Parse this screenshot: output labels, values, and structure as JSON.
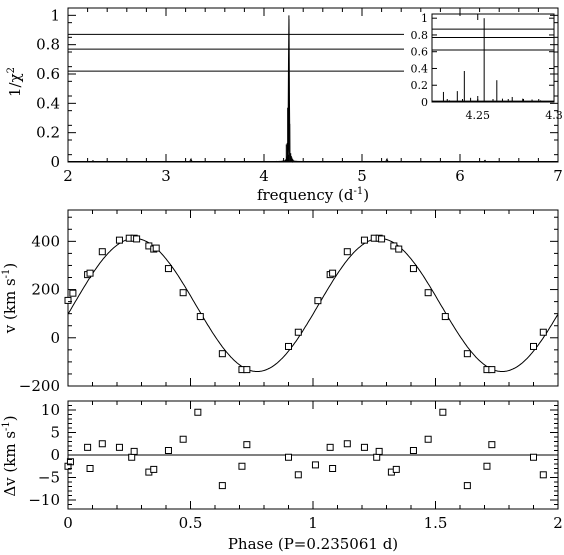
{
  "chart_data": [
    {
      "type": "line",
      "id": "periodogram",
      "xlabel": "frequency (d",
      "xlabel_sup": "-1",
      "xlabel_close": ")",
      "ylabel": "1/χ",
      "ylabel_sup": "2",
      "xlim": [
        2,
        7
      ],
      "ylim": [
        0,
        1.05
      ],
      "xticks": [
        2,
        3,
        4,
        5,
        6,
        7
      ],
      "yticks": [
        0,
        0.2,
        0.4,
        0.6,
        0.8,
        1
      ],
      "ytick_labels": [
        "0",
        "0.2",
        "0.4",
        "0.6",
        "0.8",
        "1"
      ],
      "hlines": [
        0.62,
        0.77,
        0.87
      ],
      "peak": {
        "x": 4.254,
        "y": 1.0
      },
      "side_peaks": [
        {
          "x": 3.254,
          "y": 0.018
        },
        {
          "x": 5.254,
          "y": 0.018
        },
        {
          "x": 6.254,
          "y": 0.008
        },
        {
          "x": 2.254,
          "y": 0.006
        }
      ],
      "inset": {
        "xlim": [
          4.22,
          4.3
        ],
        "ylim": [
          0,
          1.05
        ],
        "xtick_labels": [
          "4.25",
          "4.3"
        ],
        "xticks": [
          4.25,
          4.3
        ],
        "yticks": [
          0,
          0.2,
          0.4,
          0.6,
          0.8,
          1
        ],
        "ytick_labels": [
          "0",
          "0.2",
          "0.4",
          "0.6",
          "0.8",
          "1"
        ],
        "hlines": [
          0.62,
          0.77,
          0.87
        ],
        "lines": [
          {
            "x": 4.2275,
            "y": 0.12
          },
          {
            "x": 4.2314,
            "y": 0.02
          },
          {
            "x": 4.2366,
            "y": 0.13
          },
          {
            "x": 4.2412,
            "y": 0.37
          },
          {
            "x": 4.2453,
            "y": 0.05
          },
          {
            "x": 4.2542,
            "y": 1.0
          },
          {
            "x": 4.2625,
            "y": 0.26
          },
          {
            "x": 4.2662,
            "y": 0.04
          },
          {
            "x": 4.2726,
            "y": 0.06
          },
          {
            "x": 4.2795,
            "y": 0.04
          },
          {
            "x": 4.2856,
            "y": 0.03
          },
          {
            "x": 4.2912,
            "y": 0.02
          }
        ]
      }
    },
    {
      "type": "scatter",
      "id": "radial-velocity",
      "xlabel": "",
      "ylabel": "v (km s",
      "ylabel_sup": "-1",
      "ylabel_close": ")",
      "xlim": [
        0,
        2
      ],
      "ylim": [
        -200,
        530
      ],
      "yticks": [
        -200,
        0,
        200,
        400
      ],
      "ytick_labels": [
        "−200",
        "0",
        "200",
        "400"
      ],
      "model": {
        "gamma": 136,
        "amplitude": 276,
        "phase_of_max": 0.272
      },
      "x": [
        0.0,
        0.02,
        0.08,
        0.09,
        0.14,
        0.21,
        0.25,
        0.27,
        0.28,
        0.33,
        0.35,
        0.36,
        0.41,
        0.47,
        0.54,
        0.63,
        0.71,
        0.73,
        0.9,
        0.94,
        1.02,
        1.07,
        1.08,
        1.14,
        1.21,
        1.25,
        1.27,
        1.28,
        1.33,
        1.35,
        1.41,
        1.47,
        1.54,
        1.63,
        1.71,
        1.73,
        1.9,
        1.94
      ],
      "y": [
        155,
        185,
        262,
        268,
        357,
        405,
        413,
        413,
        410,
        381,
        368,
        372,
        287,
        187,
        88,
        -66,
        -132,
        -132,
        -36,
        23,
        154,
        262,
        268,
        357,
        405,
        413,
        413,
        410,
        381,
        368,
        287,
        187,
        88,
        -66,
        -132,
        -132,
        -36,
        23
      ]
    },
    {
      "type": "scatter",
      "id": "residuals",
      "xlabel": "Phase (P=0.235061 d)",
      "ylabel": "Δv (km s",
      "ylabel_sup": "-1",
      "ylabel_close": ")",
      "xlim": [
        0,
        2
      ],
      "ylim": [
        -12,
        12
      ],
      "xticks": [
        0,
        0.5,
        1,
        1.5,
        2
      ],
      "xtick_labels": [
        "0",
        "0.5",
        "1",
        "1.5",
        "2"
      ],
      "yticks": [
        -10,
        -5,
        0,
        5,
        10
      ],
      "ytick_labels": [
        "−10",
        "−5",
        "0",
        "5",
        "10"
      ],
      "x": [
        0.0,
        0.01,
        0.08,
        0.09,
        0.14,
        0.21,
        0.26,
        0.27,
        0.33,
        0.35,
        0.41,
        0.47,
        0.53,
        0.63,
        0.71,
        0.73,
        0.9,
        0.94,
        1.01,
        1.07,
        1.08,
        1.14,
        1.21,
        1.26,
        1.27,
        1.32,
        1.34,
        1.41,
        1.47,
        1.53,
        1.63,
        1.71,
        1.73,
        1.9,
        1.94
      ],
      "y": [
        -2.5,
        -1.5,
        1.7,
        -3.0,
        2.5,
        1.7,
        -0.5,
        0.8,
        -3.8,
        -3.2,
        1.0,
        3.5,
        9.5,
        -6.8,
        -2.5,
        2.3,
        -0.5,
        -4.4,
        -2.2,
        1.7,
        -3.0,
        2.5,
        1.7,
        -0.5,
        0.8,
        -3.8,
        -3.2,
        1.0,
        3.5,
        9.5,
        -6.8,
        -2.5,
        2.3,
        -0.5,
        -4.4
      ]
    }
  ]
}
